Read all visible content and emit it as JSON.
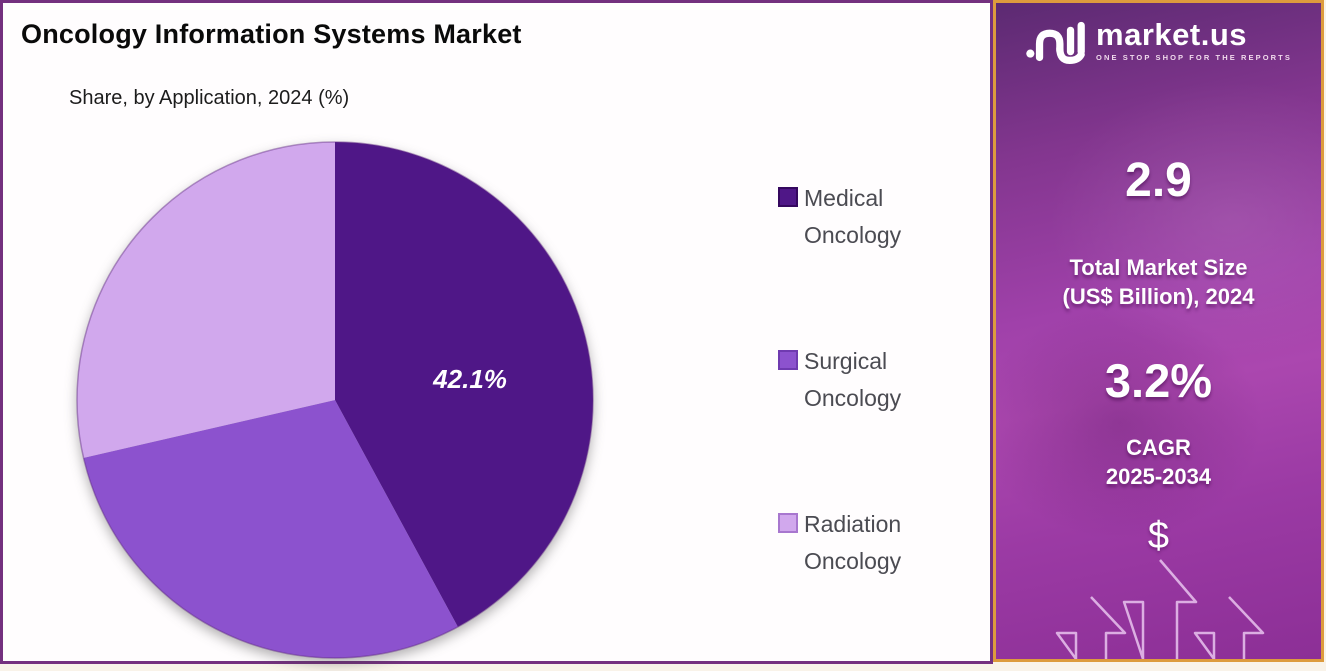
{
  "header": {
    "title": "Oncology Information Systems Market",
    "subtitle": "Share, by Application, 2024 (%)"
  },
  "chart_data": {
    "type": "pie",
    "title": "Oncology Information Systems Market",
    "subtitle": "Share, by Application, 2024 (%)",
    "unit": "%",
    "start_angle_deg": 0,
    "direction": "clockwise",
    "legend_position": "right",
    "segments": [
      {
        "label": "Medical Oncology",
        "value": 42.1,
        "display_label": "42.1%",
        "color": "#4F1787",
        "swatch_border": "#35085F"
      },
      {
        "label": "Surgical Oncology",
        "value": 29.3,
        "display_label": "",
        "color": "#8C52CE",
        "swatch_border": "#6F3AB0"
      },
      {
        "label": "Radiation Oncology",
        "value": 28.6,
        "display_label": "",
        "color": "#D1A8ED",
        "swatch_border": "#A877CF"
      }
    ]
  },
  "sidebar": {
    "brand": {
      "wordmark": "market.us",
      "tagline": "ONE STOP SHOP FOR THE REPORTS"
    },
    "market_size": {
      "value": "2.9",
      "label_line1": "Total Market Size",
      "label_line2": "(US$ Billion), 2024"
    },
    "cagr": {
      "value": "3.2%",
      "label_line1": "CAGR",
      "label_line2": "2025-2034"
    },
    "dollar_symbol": "$"
  },
  "colors": {
    "canvas_border": "#74307F",
    "sidebar_border": "#DD9B3D",
    "sidebar_gradient_top": "#5C2A72",
    "sidebar_gradient_mid": "#A843B0",
    "sidebar_gradient_bottom": "#8C2F96",
    "legend_text": "#4B4B52",
    "pie_label_text": "#FFFFFF"
  }
}
